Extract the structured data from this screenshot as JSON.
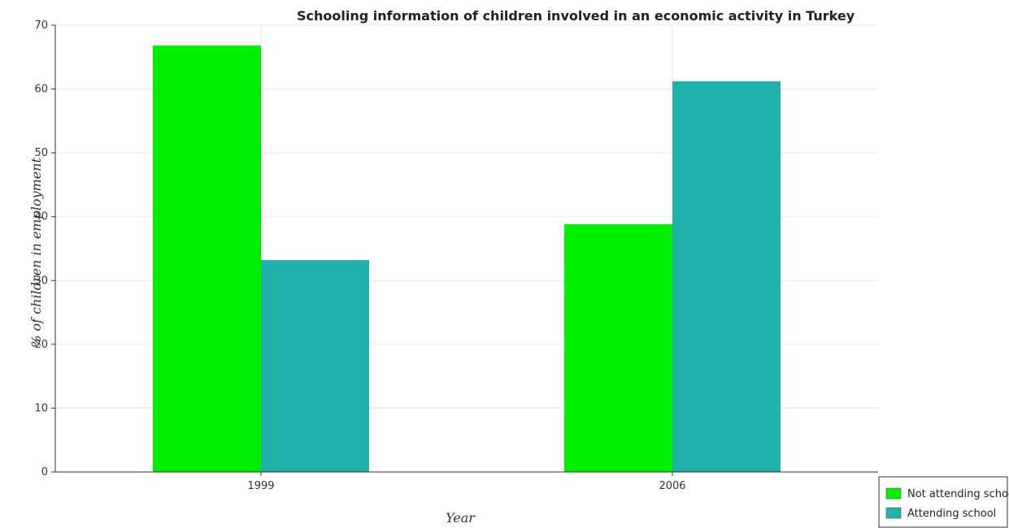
{
  "chart_data": {
    "type": "bar",
    "title": "Schooling information of children involved in an economic activity in Turkey",
    "xlabel": "Year",
    "ylabel": "% of children in employment",
    "categories": [
      "1999",
      "2006"
    ],
    "series": [
      {
        "name": "Not attending school",
        "values": [
          66.8,
          38.8
        ],
        "color": "#00ee00"
      },
      {
        "name": "Attending school",
        "values": [
          33.2,
          61.2
        ],
        "color": "#20b2aa"
      }
    ],
    "ylim": [
      0,
      70
    ],
    "yticks": [
      0,
      10,
      20,
      30,
      40,
      50,
      60,
      70
    ],
    "grid": true,
    "legend_position": "bottom-right"
  }
}
